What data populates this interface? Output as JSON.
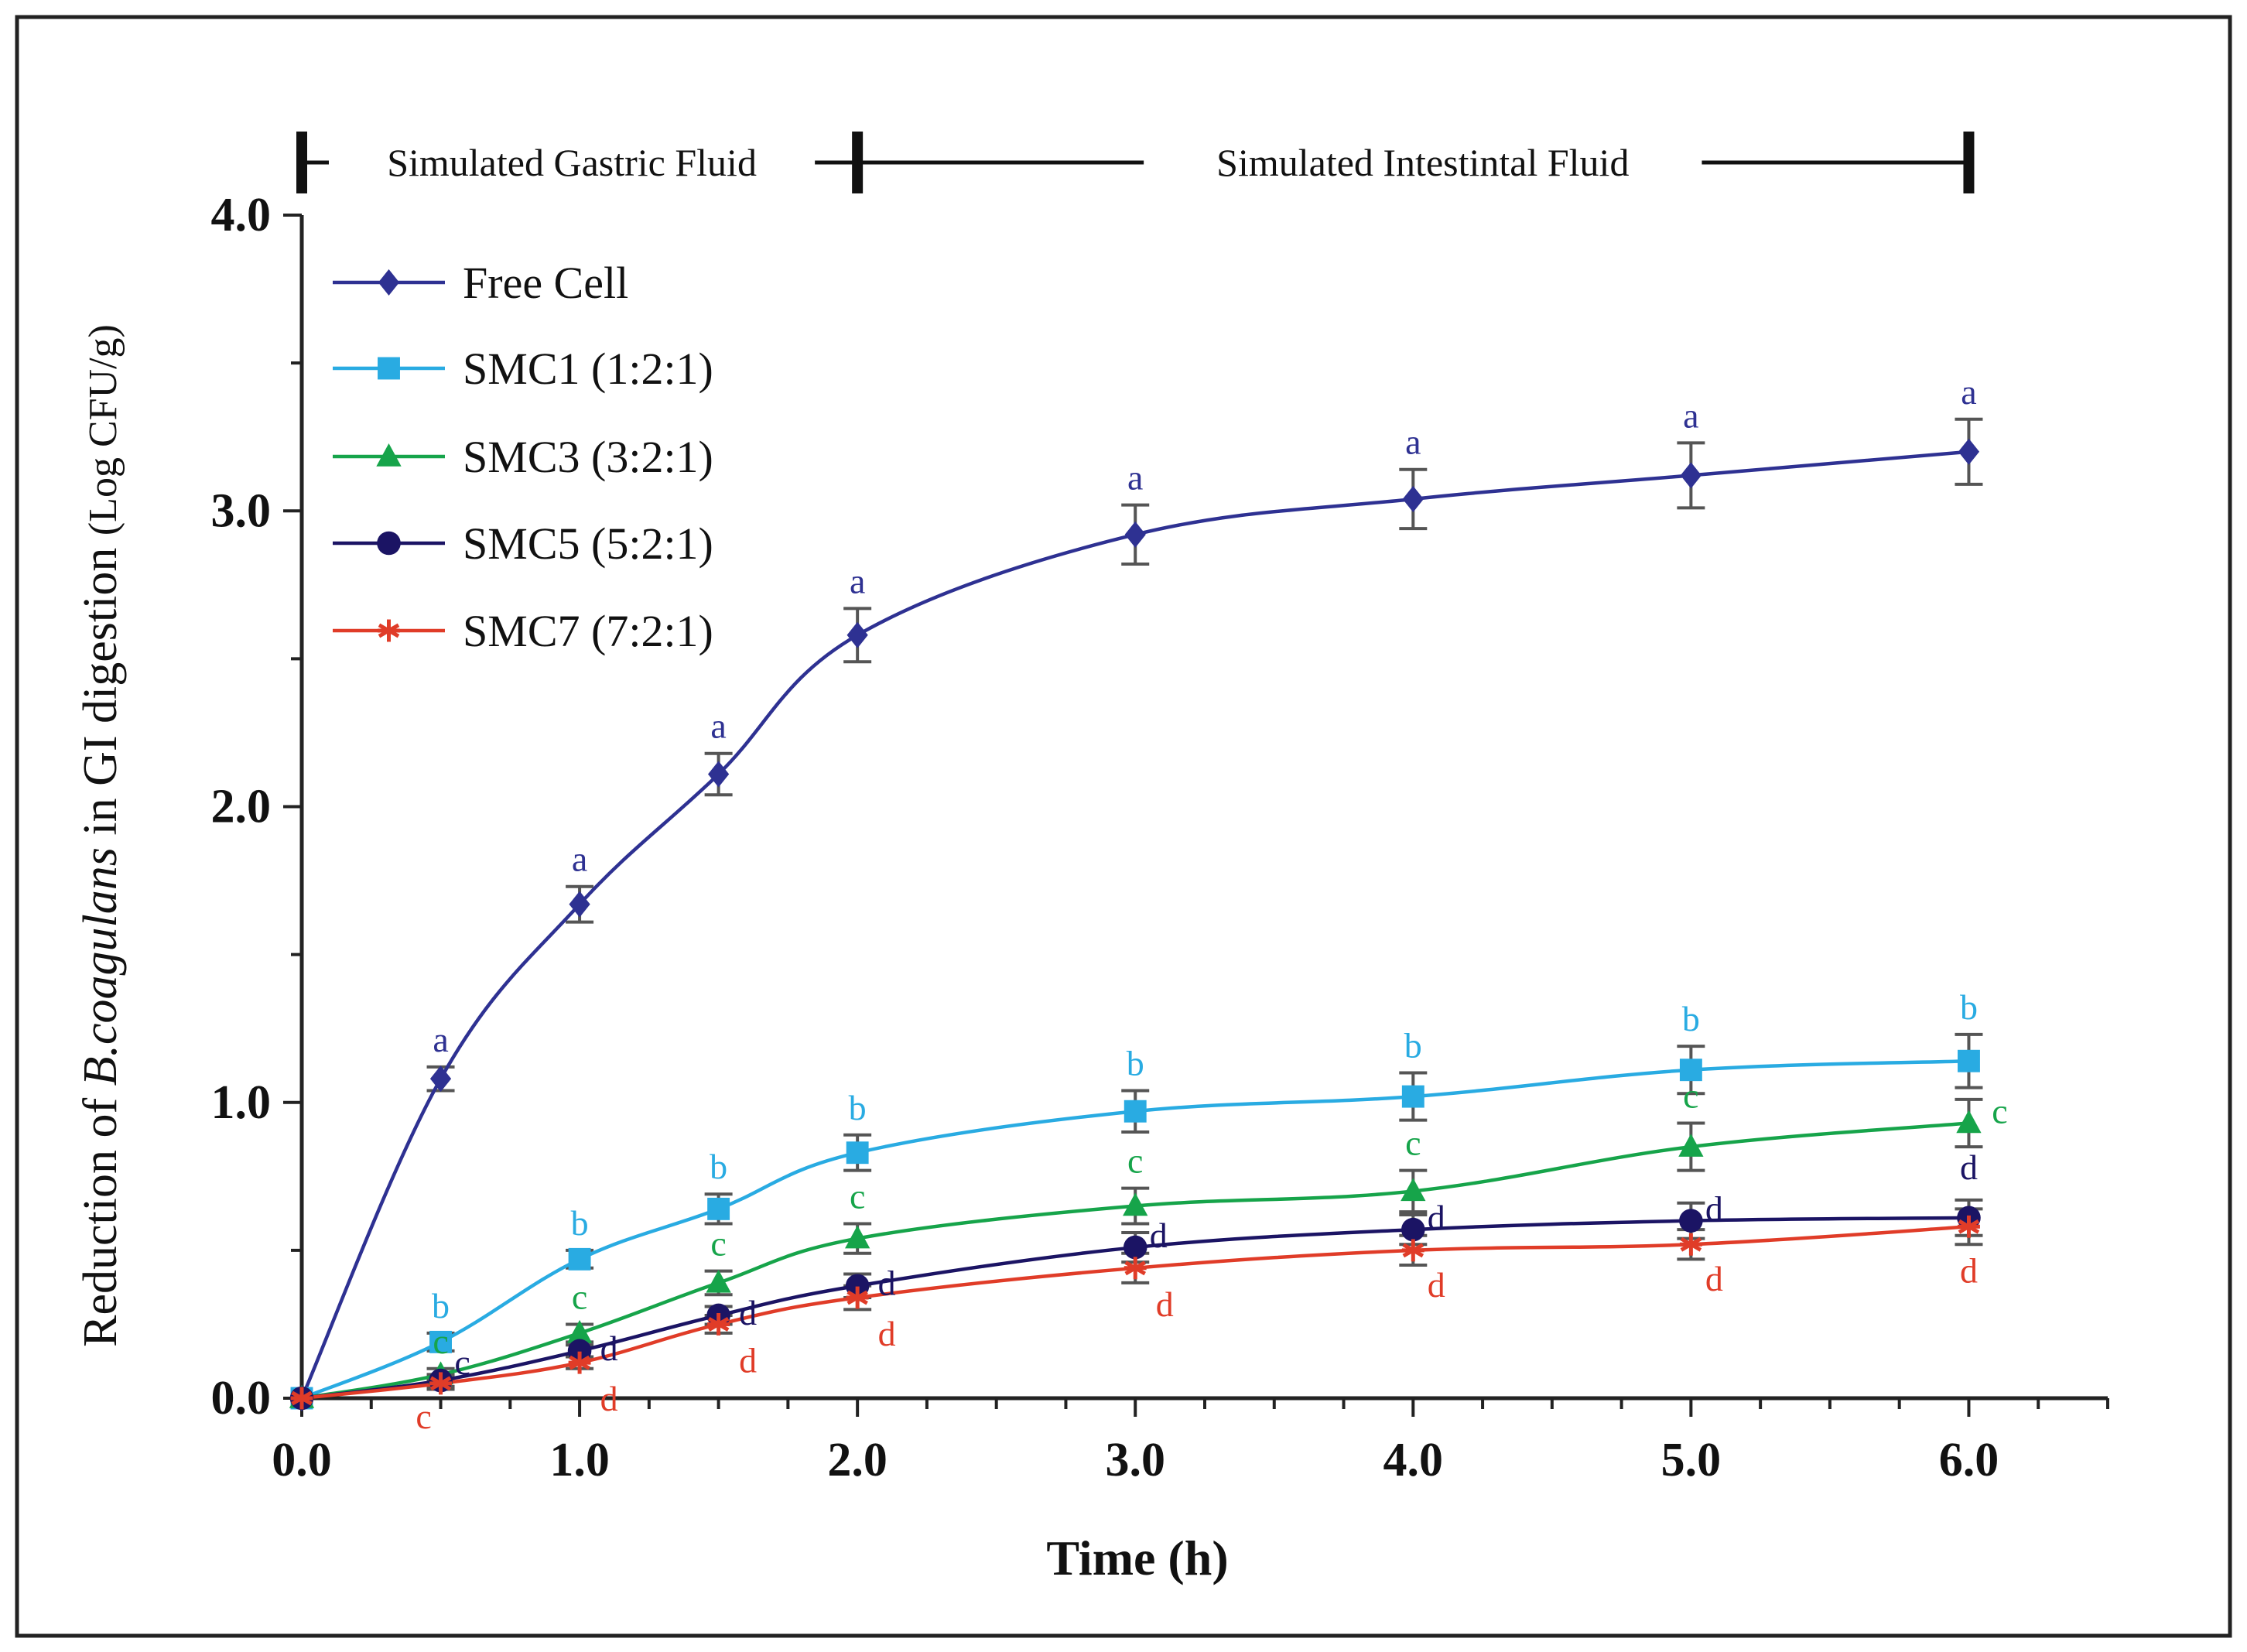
{
  "chart_data": {
    "type": "line",
    "xlabel": "Time (h)",
    "ylabel_prefix": "Reduction of ",
    "ylabel_italic": "B.coagulans",
    "ylabel_suffix": " in GI digestion ",
    "ylabel_unit": "(Log CFU/g)",
    "xlim": [
      0,
      6.5
    ],
    "ylim": [
      0,
      4.0
    ],
    "x_ticks": [
      "0.0",
      "1.0",
      "2.0",
      "3.0",
      "4.0",
      "5.0",
      "6.0"
    ],
    "y_ticks": [
      "0.0",
      "1.0",
      "2.0",
      "3.0",
      "4.0"
    ],
    "grid": false,
    "legend_position": "top-left",
    "phases": [
      {
        "label": "Simulated Gastric Fluid",
        "from": 0,
        "to": 2
      },
      {
        "label": "Simulated Intestintal Fluid",
        "from": 2,
        "to": 6
      }
    ],
    "x": [
      0,
      0.5,
      1.0,
      1.5,
      2.0,
      3.0,
      4.0,
      5.0,
      6.0
    ],
    "series": [
      {
        "name": "Free Cell",
        "color": "#2e3192",
        "marker": "diamond",
        "values": [
          0,
          1.08,
          1.67,
          2.11,
          2.58,
          2.92,
          3.04,
          3.12,
          3.2
        ],
        "errors": [
          0,
          0.04,
          0.06,
          0.07,
          0.09,
          0.1,
          0.1,
          0.11,
          0.11
        ],
        "letters": [
          "",
          "a",
          "a",
          "a",
          "a",
          "a",
          "a",
          "a",
          "a"
        ]
      },
      {
        "name": "SMC1 (1:2:1)",
        "color": "#29abe2",
        "marker": "square",
        "values": [
          0,
          0.19,
          0.47,
          0.64,
          0.83,
          0.97,
          1.02,
          1.11,
          1.14
        ],
        "errors": [
          0,
          0.03,
          0.03,
          0.05,
          0.06,
          0.07,
          0.08,
          0.08,
          0.09
        ],
        "letters": [
          "",
          "b",
          "b",
          "b",
          "b",
          "b",
          "b",
          "b",
          "b"
        ]
      },
      {
        "name": "SMC3 (3:2:1)",
        "color": "#16a44a",
        "marker": "triangle",
        "values": [
          0,
          0.08,
          0.22,
          0.39,
          0.54,
          0.65,
          0.7,
          0.85,
          0.93
        ],
        "errors": [
          0,
          0.02,
          0.03,
          0.04,
          0.05,
          0.06,
          0.07,
          0.08,
          0.08
        ],
        "letters": [
          "",
          "c",
          "c",
          "c",
          "c",
          "c",
          "c",
          "c",
          "c"
        ]
      },
      {
        "name": "SMC5 (5:2:1)",
        "color": "#1b1464",
        "marker": "circle",
        "values": [
          0,
          0.06,
          0.16,
          0.28,
          0.38,
          0.51,
          0.57,
          0.6,
          0.61
        ],
        "errors": [
          0,
          0.02,
          0.02,
          0.03,
          0.04,
          0.05,
          0.05,
          0.06,
          0.06
        ],
        "letters": [
          "",
          "c",
          "d",
          "d",
          "d",
          "d",
          "d",
          "d",
          "d"
        ]
      },
      {
        "name": "SMC7 (7:2:1)",
        "color": "#e03c28",
        "marker": "star",
        "values": [
          0,
          0.05,
          0.12,
          0.25,
          0.34,
          0.44,
          0.5,
          0.52,
          0.58
        ],
        "errors": [
          0,
          0.02,
          0.02,
          0.03,
          0.04,
          0.05,
          0.05,
          0.05,
          0.06
        ],
        "letters": [
          "",
          "c",
          "d",
          "d",
          "d",
          "d",
          "d",
          "d",
          "d"
        ]
      }
    ]
  }
}
